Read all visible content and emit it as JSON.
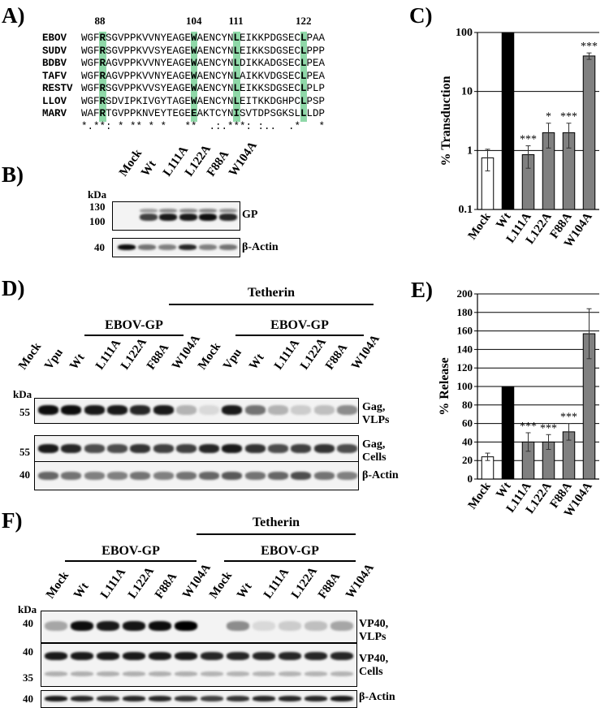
{
  "panels": {
    "a": "A)",
    "b": "B)",
    "c": "C)",
    "d": "D)",
    "e": "E)",
    "f": "F)"
  },
  "alignment": {
    "positions": [
      "88",
      "104",
      "111",
      "122"
    ],
    "rows": [
      {
        "species": "EBOV",
        "seq": "WGFRSGVPPKVVNYEAGEWAENCYNLEIKKPDGSECLPAA"
      },
      {
        "species": "SUDV",
        "seq": "WGFRSGVPPKVVSYEAGEWAENCYNLEIKKSDGSECLPPP"
      },
      {
        "species": "BDBV",
        "seq": "WGFRAGVPPKVVNYEAGEWAENCYNLDIKKADGSECLPEA"
      },
      {
        "species": "TAFV",
        "seq": "WGFRAGVPPKVVNYEAGEWAENCYNLAIKKVDGSECLPEA"
      },
      {
        "species": "RESTV",
        "seq": "WGFRSGVPPKVVSYEAGEWAENCYNLEIKKSDGSECLPLP"
      },
      {
        "species": "LLOV",
        "seq": "WGFRSDVIPKIVGYTAGEWAENCYNLEITKKDGHPCLPSP"
      },
      {
        "species": "MARV",
        "seq": "WAFRTGVPPKNVEYTEGEEAKTCYNISVTDPSGKSLLLDP"
      }
    ],
    "consensus": "*.**: * ** * *   **  .:.***: :..  .*   *"
  },
  "blot_b": {
    "kda": "kDa",
    "lanes": [
      "Mock",
      "Wt",
      "L111A",
      "L122A",
      "F88A",
      "W104A"
    ],
    "markers_gp": [
      "130",
      "100"
    ],
    "marker_actin": "40",
    "label_gp": "GP",
    "label_actin": "β-Actin"
  },
  "blot_d": {
    "kda": "kDa",
    "group_tetherin": "Tetherin",
    "group_gp": "EBOV-GP",
    "lanes": [
      "Mock",
      "Vpu",
      "Wt",
      "L111A",
      "L122A",
      "F88A",
      "W104A",
      "Mock",
      "Vpu",
      "Wt",
      "L111A",
      "L122A",
      "F88A",
      "W104A"
    ],
    "markers": [
      "55",
      "55",
      "40"
    ],
    "labels": [
      "Gag,\nVLPs",
      "Gag,\nCells",
      "β-Actin"
    ]
  },
  "blot_f": {
    "kda": "kDa",
    "group_tetherin": "Tetherin",
    "group_gp": "EBOV-GP",
    "lanes": [
      "Mock",
      "Wt",
      "L111A",
      "L122A",
      "F88A",
      "W104A",
      "Mock",
      "Wt",
      "L111A",
      "L122A",
      "F88A",
      "W104A"
    ],
    "markers": [
      "40",
      "40",
      "35",
      "40"
    ],
    "labels": [
      "VP40,\nVLPs",
      "VP40,\nCells",
      "β-Actin"
    ]
  },
  "chart_data": [
    {
      "type": "bar",
      "ylabel": "% Transduction",
      "yscale": "log",
      "ylim": [
        0.1,
        100
      ],
      "yticks": [
        "0.1",
        "1",
        "10",
        "100"
      ],
      "categories": [
        "Mock",
        "Wt",
        "L111A",
        "L122A",
        "F88A",
        "W104A"
      ],
      "values": [
        0.75,
        100,
        0.85,
        2.0,
        2.0,
        40
      ],
      "errors": [
        0.3,
        0,
        0.35,
        0.9,
        0.9,
        5
      ],
      "significance": [
        "",
        "",
        "***",
        "*",
        "***",
        "***"
      ],
      "colors": [
        "#ffffff",
        "#000000",
        "#808080",
        "#808080",
        "#808080",
        "#808080"
      ],
      "grid": true
    },
    {
      "type": "bar",
      "ylabel": "% Release",
      "ylim": [
        0,
        200
      ],
      "yticks": [
        "0",
        "20",
        "40",
        "60",
        "80",
        "100",
        "120",
        "140",
        "160",
        "180",
        "200"
      ],
      "categories": [
        "Mock",
        "Wt",
        "L111A",
        "L122A",
        "F88A",
        "W104A"
      ],
      "values": [
        24,
        100,
        40,
        40,
        51,
        157
      ],
      "errors": [
        4,
        0,
        10,
        8,
        9,
        27
      ],
      "significance": [
        "",
        "",
        "***",
        "***",
        "***",
        ""
      ],
      "colors": [
        "#ffffff",
        "#000000",
        "#808080",
        "#808080",
        "#808080",
        "#808080"
      ],
      "grid": true
    }
  ]
}
